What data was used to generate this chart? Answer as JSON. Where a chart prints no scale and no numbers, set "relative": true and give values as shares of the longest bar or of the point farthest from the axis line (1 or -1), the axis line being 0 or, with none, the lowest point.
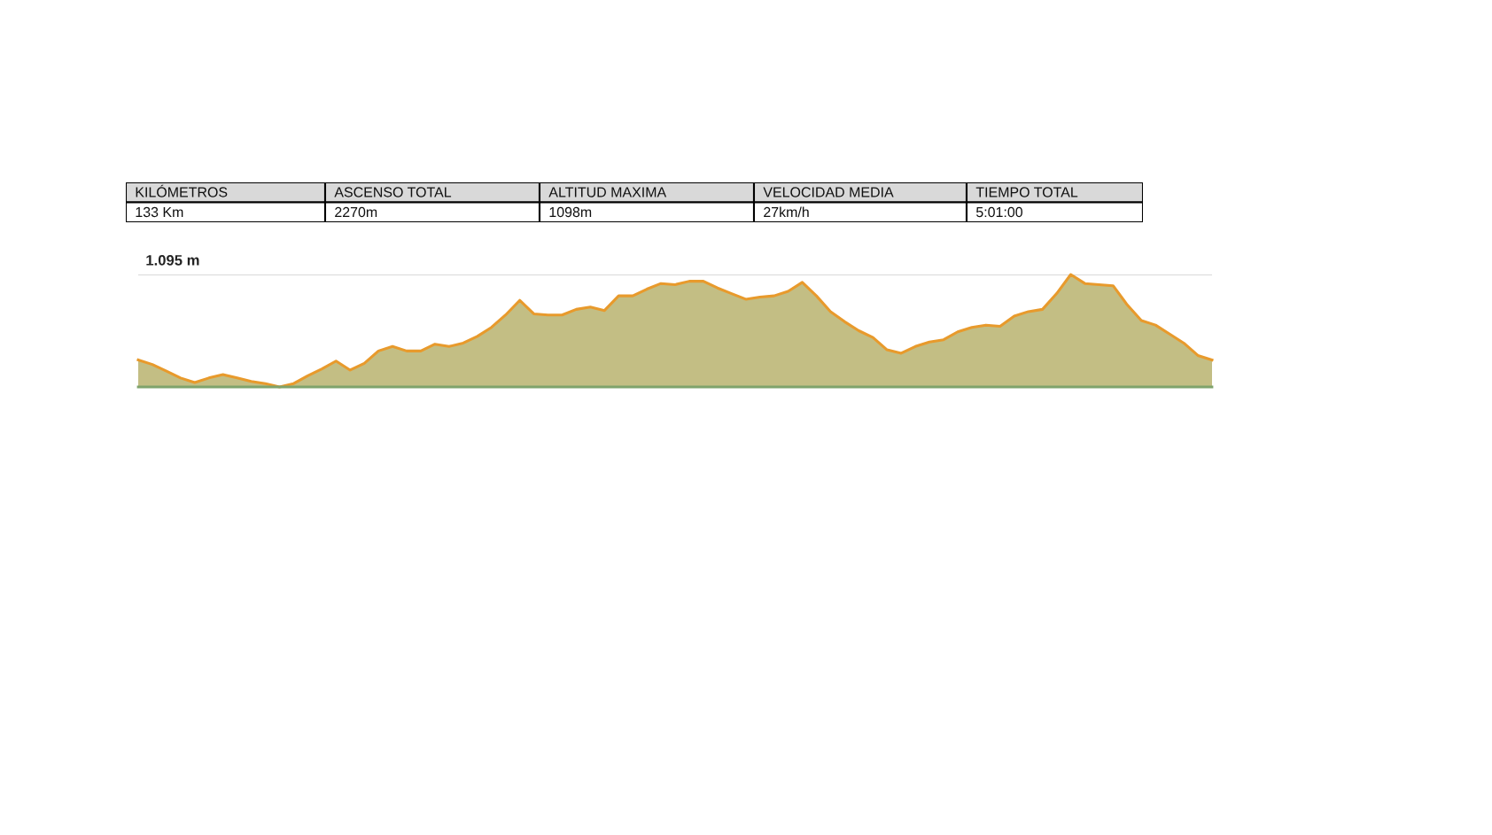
{
  "chart_data": [
    {
      "type": "other",
      "annotations": [
        "KILÓMETROS",
        "ASCENSO TOTAL",
        "ALTITUD MAXIMA",
        "VELOCIDAD MEDIA",
        "TIEMPO TOTAL",
        "133 Km",
        "2270m",
        "1098m",
        "27km/h",
        "5:01:00"
      ]
    },
    {
      "type": "area",
      "relative": true,
      "categories": [
        null,
        null,
        null,
        null,
        null,
        null,
        null,
        null,
        null,
        null,
        null,
        null,
        null,
        null,
        null,
        null,
        null,
        null,
        null,
        null,
        null,
        null,
        null,
        null,
        null,
        null,
        null,
        null,
        null,
        null,
        null,
        null,
        null,
        null,
        null,
        null,
        null,
        null,
        null,
        null,
        null,
        null,
        null,
        null,
        null,
        null,
        null,
        null,
        null,
        null,
        null,
        null,
        null,
        null,
        null,
        null,
        null,
        null,
        null,
        null,
        null,
        null,
        null,
        null,
        null,
        null,
        null,
        null,
        null,
        null,
        null,
        null,
        null,
        null,
        null,
        null,
        null
      ],
      "series": [
        {
          "color": "#e89a2c",
          "values": [
            0.24,
            0.2,
            0.14,
            0.08,
            0.04,
            0.08,
            0.11,
            0.08,
            0.05,
            0.03,
            0.0,
            0.03,
            0.1,
            0.16,
            0.23,
            0.15,
            0.21,
            0.32,
            0.36,
            0.32,
            0.32,
            0.38,
            0.36,
            0.39,
            0.45,
            0.53,
            0.64,
            0.77,
            0.65,
            0.64,
            0.64,
            0.69,
            0.71,
            0.68,
            0.81,
            0.81,
            0.87,
            0.92,
            0.91,
            0.94,
            0.94,
            0.88,
            0.83,
            0.78,
            0.8,
            0.81,
            0.85,
            0.93,
            0.81,
            0.67,
            0.58,
            0.5,
            0.44,
            0.33,
            0.3,
            0.36,
            0.4,
            0.42,
            0.49,
            0.53,
            0.55,
            0.54,
            0.63,
            0.67,
            0.69,
            0.83,
            1.0,
            0.92,
            0.91,
            0.9,
            0.73,
            0.59,
            0.55,
            0.47,
            0.39,
            0.28,
            0.24
          ]
        }
      ],
      "ref_lines": [
        {
          "axis": "y",
          "value": 1,
          "label": "1.095 m",
          "color": "#cccccc"
        }
      ],
      "legend": false
    }
  ]
}
